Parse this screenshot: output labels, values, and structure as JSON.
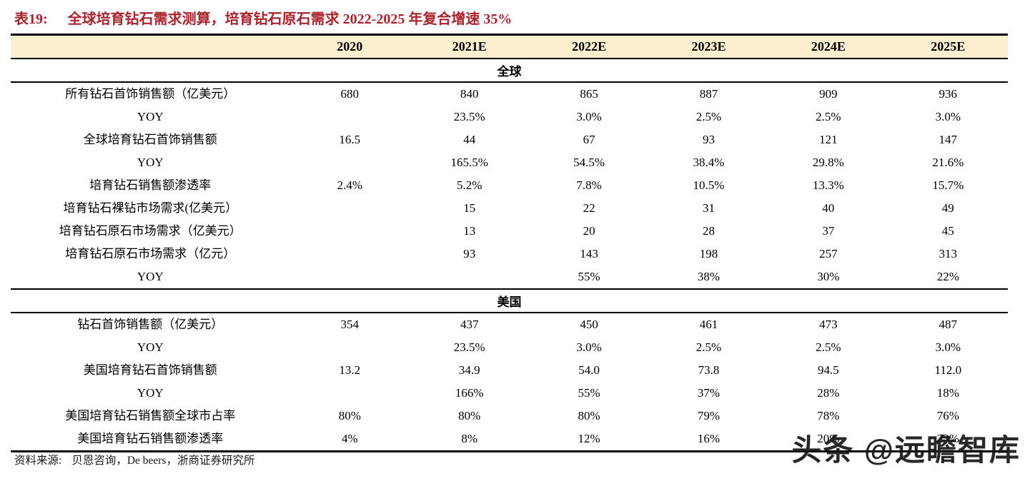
{
  "title": {
    "label": "表19:",
    "text": "全球培育钻石需求测算，培育钻石原石需求 2022-2025 年复合增速 35%"
  },
  "table": {
    "columns": [
      "",
      "2020",
      "2021E",
      "2022E",
      "2023E",
      "2024E",
      "2025E"
    ],
    "sections": [
      {
        "name": "全球",
        "rows": [
          {
            "label": "所有钻石首饰销售额（亿美元）",
            "values": [
              "680",
              "840",
              "865",
              "887",
              "909",
              "936"
            ]
          },
          {
            "label": "YOY",
            "values": [
              "",
              "23.5%",
              "3.0%",
              "2.5%",
              "2.5%",
              "3.0%"
            ]
          },
          {
            "label": "全球培育钻石首饰销售额",
            "values": [
              "16.5",
              "44",
              "67",
              "93",
              "121",
              "147"
            ]
          },
          {
            "label": "YOY",
            "values": [
              "",
              "165.5%",
              "54.5%",
              "38.4%",
              "29.8%",
              "21.6%"
            ]
          },
          {
            "label": "培育钻石销售额渗透率",
            "values": [
              "2.4%",
              "5.2%",
              "7.8%",
              "10.5%",
              "13.3%",
              "15.7%"
            ]
          },
          {
            "label": "培育钻石裸钻市场需求(亿美元）",
            "values": [
              "",
              "15",
              "22",
              "31",
              "40",
              "49"
            ]
          },
          {
            "label": "培育钻石原石市场需求（亿美元）",
            "values": [
              "",
              "13",
              "20",
              "28",
              "37",
              "45"
            ]
          },
          {
            "label": "培育钻石原石市场需求（亿元）",
            "values": [
              "",
              "93",
              "143",
              "198",
              "257",
              "313"
            ]
          },
          {
            "label": "YOY",
            "values": [
              "",
              "",
              "55%",
              "38%",
              "30%",
              "22%"
            ]
          }
        ]
      },
      {
        "name": "美国",
        "rows": [
          {
            "label": "钻石首饰销售额（亿美元）",
            "values": [
              "354",
              "437",
              "450",
              "461",
              "473",
              "487"
            ]
          },
          {
            "label": "YOY",
            "values": [
              "",
              "23.5%",
              "3.0%",
              "2.5%",
              "2.5%",
              "3.0%"
            ]
          },
          {
            "label": "美国培育钻石首饰销售额",
            "values": [
              "13.2",
              "34.9",
              "54.0",
              "73.8",
              "94.5",
              "112.0"
            ]
          },
          {
            "label": "YOY",
            "values": [
              "",
              "166%",
              "55%",
              "37%",
              "28%",
              "18%"
            ]
          },
          {
            "label": "美国培育钻石销售额全球市占率",
            "values": [
              "80%",
              "80%",
              "80%",
              "79%",
              "78%",
              "76%"
            ]
          },
          {
            "label": "美国培育钻石销售额渗透率",
            "values": [
              "4%",
              "8%",
              "12%",
              "16%",
              "20%",
              "23%"
            ]
          }
        ]
      }
    ]
  },
  "footer": {
    "source_label": "资料来源:",
    "source_text": "贝恩咨询，De beers，浙商证券研究所"
  },
  "watermark": "头条 @远瞻智库",
  "colors": {
    "title_red": "#A8232D",
    "header_bg": "#FBEFD0",
    "border": "#000000",
    "watermark": "#161616"
  }
}
